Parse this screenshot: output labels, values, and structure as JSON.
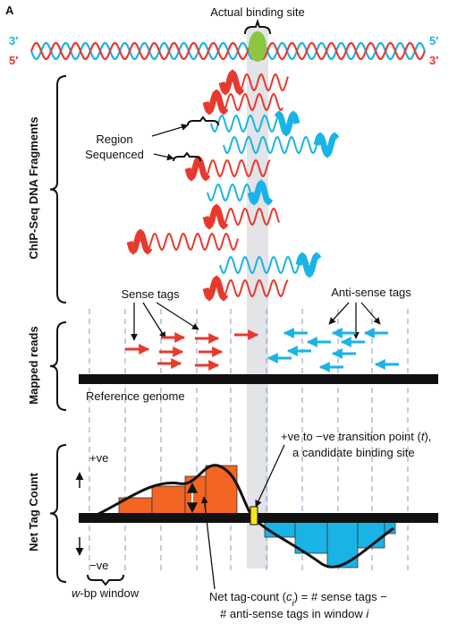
{
  "panel_label": "A",
  "binding_site_label": "Actual binding site",
  "strand_labels": {
    "left_top": "3′",
    "left_bottom": "5′",
    "right_top": "5′",
    "right_bottom": "3′"
  },
  "fragments_label": "ChIP-Seq DNA Fragments",
  "region_label": [
    "Region",
    "Sequenced"
  ],
  "sense_label": "Sense tags",
  "antisense_label": "Anti-sense tags",
  "mapped_label": "Mapped reads",
  "reference_label": "Reference genome",
  "transition_label": [
    [
      "+ve to −ve transition point (",
      "t",
      "),"
    ],
    [
      "a candidate binding site"
    ]
  ],
  "net_label": "Net Tag Count",
  "pos_label": "+ve",
  "neg_label": "−ve",
  "window_label": [
    "w",
    "-bp window"
  ],
  "formula": [
    [
      "Net tag-count (",
      "c",
      "i",
      ") = # sense tags −"
    ],
    [
      "# anti-sense tags in window ",
      "i"
    ]
  ]
}
